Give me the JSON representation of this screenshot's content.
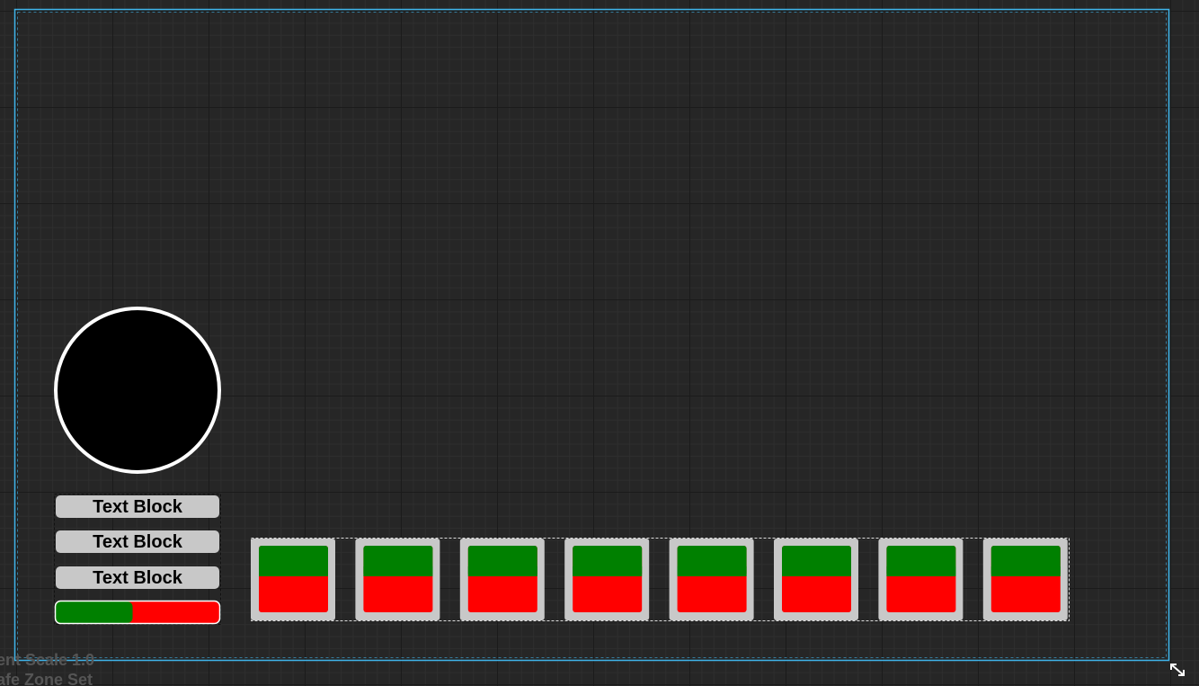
{
  "status": {
    "line1": "ent Scale 1.0",
    "line2": "afe Zone Set"
  },
  "text_blocks": [
    "Text Block",
    "Text Block",
    "Text Block"
  ],
  "progress_bar": {
    "percent": 0.47
  }
}
